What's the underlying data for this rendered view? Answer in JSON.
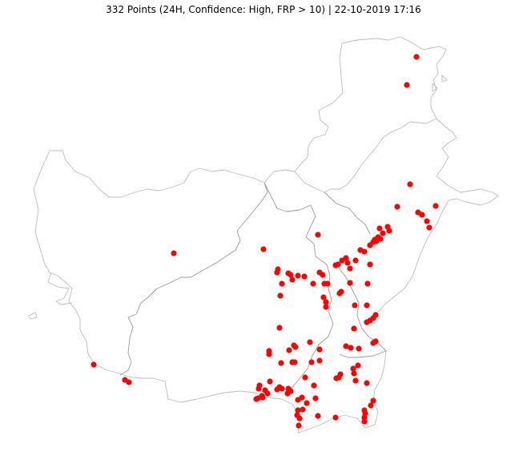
{
  "title": "332 Points (24H, Confidence: High, FRP > 10) | 22-10-2019 17:16",
  "colors": {
    "point": "#ff0000",
    "outline": "#bdbdbd",
    "border": "#9a9a9a",
    "background": "#ffffff"
  },
  "marker": "filled-circle"
}
